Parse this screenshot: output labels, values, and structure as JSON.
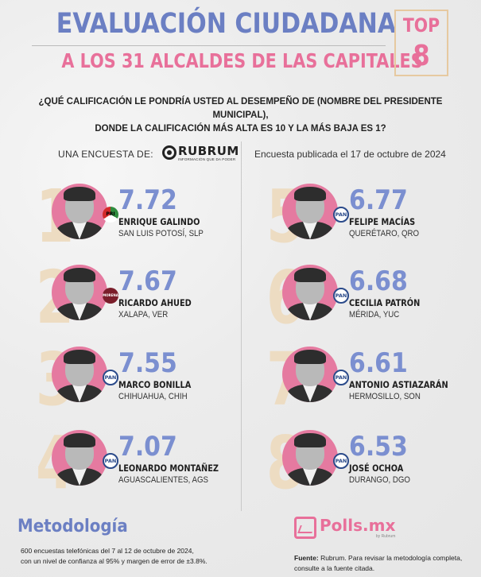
{
  "header": {
    "title": "EVALUACIÓN CIUDADANA",
    "subtitle": "A LOS 31 ALCALDES DE LAS CAPITALES",
    "top_label": "TOP",
    "top_number": "8"
  },
  "question": {
    "line1": "¿QUÉ CALIFICACIÓN LE PONDRÍA USTED AL DESEMPEÑO DE (NOMBRE DEL PRESIDENTE MUNICIPAL),",
    "line2": "DONDE LA CALIFICACIÓN MÁS ALTA ES 10 Y LA MÁS BAJA ES 1?"
  },
  "survey": {
    "label": "UNA ENCUESTA DE:",
    "brand": "RUBRUM",
    "brand_tagline": "INFORMACIÓN QUE DA PODER",
    "published": "Encuesta publicada el 17 de octubre de 2024"
  },
  "ranking": [
    {
      "rank": "1",
      "score": "7.72",
      "name": "ENRIQUE GALINDO",
      "city": "SAN LUIS POTOSÍ, SLP",
      "party": "PRI",
      "party_style": "pri"
    },
    {
      "rank": "2",
      "score": "7.67",
      "name": "RICARDO AHUED",
      "city": "XALAPA, VER",
      "party": "MORENA",
      "party_style": "morena"
    },
    {
      "rank": "3",
      "score": "7.55",
      "name": "MARCO BONILLA",
      "city": "CHIHUAHUA, CHIH",
      "party": "PAN",
      "party_style": "pan"
    },
    {
      "rank": "4",
      "score": "7.07",
      "name": "LEONARDO MONTAÑEZ",
      "city": "AGUASCALIENTES, AGS",
      "party": "PAN",
      "party_style": "pan"
    },
    {
      "rank": "5",
      "score": "6.77",
      "name": "FELIPE MACÍAS",
      "city": "QUERÉTARO, QRO",
      "party": "PAN",
      "party_style": "pan"
    },
    {
      "rank": "6",
      "score": "6.68",
      "name": "CECILIA PATRÓN",
      "city": "MÉRIDA, YUC",
      "party": "PAN",
      "party_style": "pan"
    },
    {
      "rank": "7",
      "score": "6.61",
      "name": "ANTONIO ASTIAZARÁN",
      "city": "HERMOSILLO, SON",
      "party": "PAN",
      "party_style": "pan"
    },
    {
      "rank": "8",
      "score": "6.53",
      "name": "JOSÉ OCHOA",
      "city": "DURANGO, DGO",
      "party": "PAN",
      "party_style": "pan"
    }
  ],
  "methodology": {
    "title": "Metodología",
    "line1": "600 encuestas telefónicas del 7 al 12 de octubre de 2024,",
    "line2": "con un nivel de confianza al 95% y margen de error de ±3.8%."
  },
  "footer": {
    "brand": "Polls.mx",
    "brand_tagline": "by Rubrum",
    "source_label": "Fuente:",
    "source_text": " Rubrum. Para revisar la metodología completa,",
    "source_line2": "consulte a la fuente citada."
  },
  "colors": {
    "blue": "#6b7fc3",
    "pink": "#e8709a",
    "beige": "#eddcc2"
  }
}
